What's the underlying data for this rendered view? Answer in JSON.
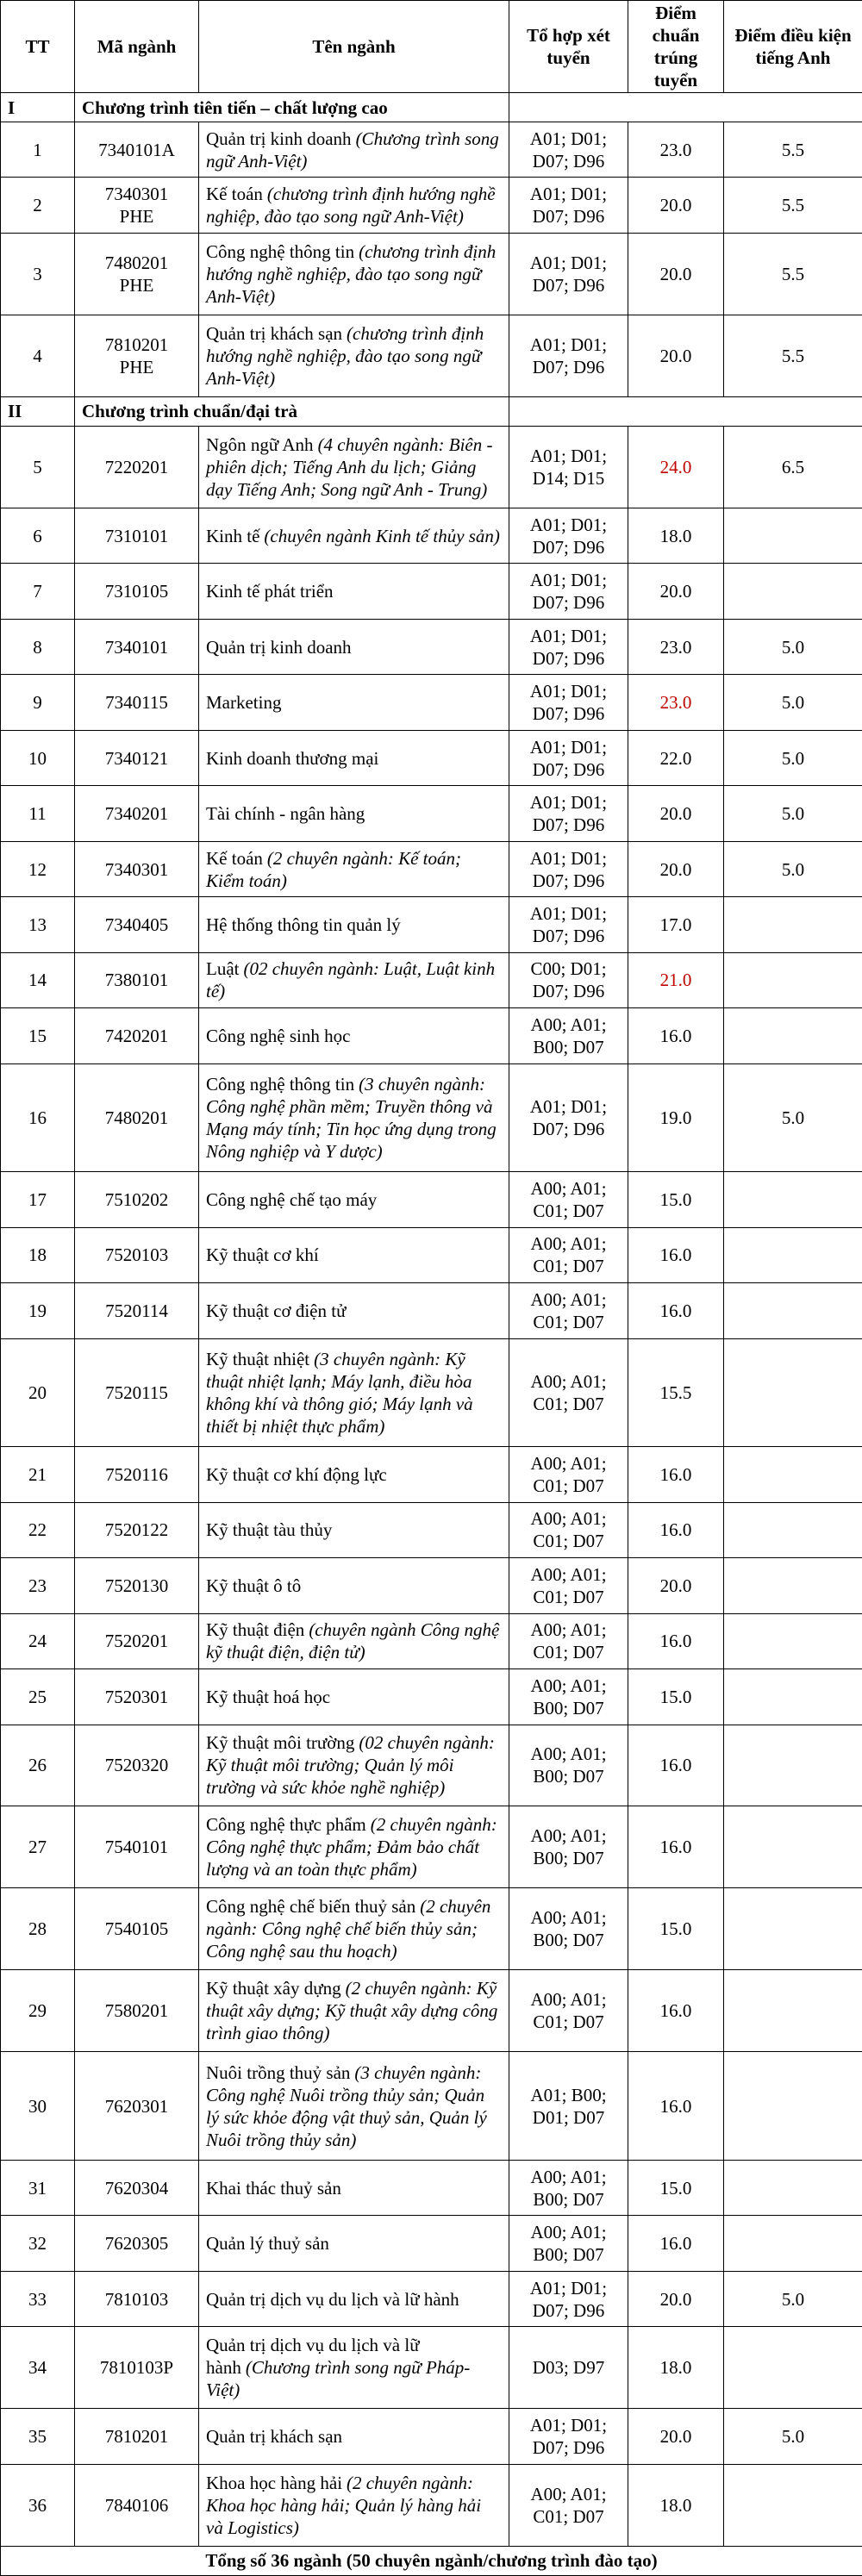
{
  "table": {
    "header": [
      "TT",
      "Mã ngành",
      "Tên ngành",
      "Tổ hợp xét tuyển",
      "Điểm chuẩn trúng tuyển",
      "Điểm điều kiện tiếng Anh"
    ],
    "sections": [
      {
        "numeral": "I",
        "title": "Chương trình tiên tiến – chất lượng cao",
        "rows": [
          {
            "tt": "1",
            "code": "7340101A",
            "name": "Quản trị kinh doanh",
            "detail": "(Chương trình song ngữ Anh-Việt)",
            "combo": "A01; D01; D07; D96",
            "score": "23.0",
            "english": "5.5"
          },
          {
            "tt": "2",
            "code": "7340301 PHE",
            "name": "Kế toán",
            "detail": "(chương trình định hướng nghề nghiệp, đào tạo song ngữ Anh-Việt)",
            "combo": "A01; D01; D07; D96",
            "score": "20.0",
            "english": "5.5"
          },
          {
            "tt": "3",
            "code": "7480201 PHE",
            "name": "Công nghệ thông tin",
            "detail": "(chương trình định hướng nghề nghiệp, đào tạo song ngữ Anh-Việt)",
            "combo": "A01; D01; D07; D96",
            "score": "20.0",
            "english": "5.5"
          },
          {
            "tt": "4",
            "code": "7810201 PHE",
            "name": "Quản trị khách sạn",
            "detail": "(chương trình định hướng nghề nghiệp, đào tạo song ngữ Anh-Việt)",
            "combo": "A01; D01; D07; D96",
            "score": "20.0",
            "english": "5.5"
          }
        ]
      },
      {
        "numeral": "II",
        "title": "Chương trình chuẩn/đại trà",
        "rows": [
          {
            "tt": "5",
            "code": "7220201",
            "name": "Ngôn ngữ Anh",
            "detail": "(4 chuyên ngành: Biên - phiên dịch; Tiếng Anh du lịch; Giảng dạy Tiếng Anh; Song ngữ Anh - Trung)",
            "combo": "A01; D01; D14; D15",
            "score": "24.0",
            "score_color": "#c00000",
            "english": "6.5"
          },
          {
            "tt": "6",
            "code": "7310101",
            "name": "Kinh tế",
            "detail": "(chuyên ngành Kinh tế thủy sản)",
            "combo": "A01; D01; D07; D96",
            "score": "18.0"
          },
          {
            "tt": "7",
            "code": "7310105",
            "name": "Kinh tế phát triển",
            "combo": "A01; D01; D07; D96",
            "score": "20.0"
          },
          {
            "tt": "8",
            "code": "7340101",
            "name": "Quản trị kinh doanh",
            "combo": "A01; D01; D07; D96",
            "score": "23.0",
            "english": "5.0"
          },
          {
            "tt": "9",
            "code": "7340115",
            "name": "Marketing",
            "combo": "A01; D01; D07; D96",
            "score": "23.0",
            "score_color": "#c00000",
            "english": "5.0"
          },
          {
            "tt": "10",
            "code": "7340121",
            "name": "Kinh doanh thương mại",
            "combo": "A01; D01; D07; D96",
            "score": "22.0",
            "english": "5.0"
          },
          {
            "tt": "11",
            "code": "7340201",
            "name": "Tài chính - ngân hàng",
            "combo": "A01; D01; D07; D96",
            "score": "20.0",
            "english": "5.0"
          },
          {
            "tt": "12",
            "code": "7340301",
            "name": "Kế toán",
            "detail": "(2 chuyên ngành: Kế toán; Kiểm toán)",
            "combo": "A01; D01; D07; D96",
            "score": "20.0",
            "english": "5.0"
          },
          {
            "tt": "13",
            "code": "7340405",
            "name": "Hệ thống thông tin quản lý",
            "combo": "A01; D01; D07; D96",
            "score": "17.0"
          },
          {
            "tt": "14",
            "code": "7380101",
            "name": "Luật",
            "detail": "(02 chuyên ngành: Luật, Luật kinh tế)",
            "combo": "C00; D01; D07; D96",
            "score": "21.0",
            "score_color": "#c00000"
          },
          {
            "tt": "15",
            "code": "7420201",
            "name": "Công nghệ sinh học",
            "combo": "A00; A01; B00; D07",
            "score": "16.0"
          },
          {
            "tt": "16",
            "code": "7480201",
            "name": "Công nghệ thông tin",
            "detail": "(3 chuyên ngành: Công nghệ phần mềm; Truyền thông và Mạng máy tính; Tin học ứng dụng trong Nông nghiệp và Y dược)",
            "combo": "A01; D01; D07; D96",
            "score": "19.0",
            "english": "5.0"
          },
          {
            "tt": "17",
            "code": "7510202",
            "name": "Công nghệ chế tạo máy",
            "combo": "A00; A01; C01; D07",
            "score": "15.0"
          },
          {
            "tt": "18",
            "code": "7520103",
            "name": "Kỹ thuật cơ khí",
            "combo": "A00; A01; C01; D07",
            "score": "16.0"
          },
          {
            "tt": "19",
            "code": "7520114",
            "name": "Kỹ thuật cơ điện tử",
            "combo": "A00; A01; C01; D07",
            "score": "16.0"
          },
          {
            "tt": "20",
            "code": "7520115",
            "name": "Kỹ thuật nhiệt",
            "detail": "(3 chuyên ngành: Kỹ thuật nhiệt lạnh; Máy lạnh, điều hòa không khí và thông gió; Máy lạnh và thiết bị nhiệt thực phẩm)",
            "combo": "A00; A01; C01; D07",
            "score": "15.5"
          },
          {
            "tt": "21",
            "code": "7520116",
            "name": "Kỹ thuật cơ khí động lực",
            "combo": "A00; A01; C01; D07",
            "score": "16.0"
          },
          {
            "tt": "22",
            "code": "7520122",
            "name": "Kỹ thuật tàu thủy",
            "combo": "A00; A01; C01; D07",
            "score": "16.0"
          },
          {
            "tt": "23",
            "code": "7520130",
            "name": "Kỹ thuật ô tô",
            "combo": "A00; A01; C01; D07",
            "score": "20.0"
          },
          {
            "tt": "24",
            "code": "7520201",
            "name": "Kỹ thuật điện",
            "detail": "(chuyên ngành Công nghệ kỹ thuật điện, điện tử)",
            "combo": "A00; A01; C01; D07",
            "score": "16.0"
          },
          {
            "tt": "25",
            "code": "7520301",
            "name": "Kỹ thuật hoá học",
            "combo": "A00; A01; B00; D07",
            "score": "15.0"
          },
          {
            "tt": "26",
            "code": "7520320",
            "name": "Kỹ thuật môi trường",
            "detail": "(02 chuyên ngành: Kỹ thuật môi trường; Quản lý môi trường và sức khỏe nghề nghiệp)",
            "combo": "A00; A01; B00; D07",
            "score": "16.0"
          },
          {
            "tt": "27",
            "code": "7540101",
            "name": "Công nghệ thực phẩm",
            "detail": "(2 chuyên ngành: Công nghệ thực phẩm; Đảm bảo chất lượng và an toàn thực phẩm)",
            "combo": "A00; A01; B00; D07",
            "score": "16.0"
          },
          {
            "tt": "28",
            "code": "7540105",
            "name": "Công nghệ chế biến thuỷ sản",
            "detail": "(2 chuyên ngành: Công nghệ chế biến thủy sản; Công nghệ sau thu hoạch)",
            "combo": "A00; A01; B00; D07",
            "score": "15.0"
          },
          {
            "tt": "29",
            "code": "7580201",
            "name": "Kỹ thuật xây dựng",
            "detail": "(2 chuyên ngành: Kỹ thuật xây dựng; Kỹ thuật xây dựng công trình giao thông)",
            "combo": "A00; A01; C01; D07",
            "score": "16.0"
          },
          {
            "tt": "30",
            "code": "7620301",
            "name": "Nuôi trồng thuỷ sản",
            "detail": "(3 chuyên ngành: Công nghệ Nuôi trồng thủy sản; Quản lý sức khỏe động vật thuỷ sản, Quản lý Nuôi trồng thủy sản)",
            "combo": "A01; B00; D01; D07",
            "score": "16.0"
          },
          {
            "tt": "31",
            "code": "7620304",
            "name": "Khai thác thuỷ sản",
            "combo": "A00; A01; B00; D07",
            "score": "15.0"
          },
          {
            "tt": "32",
            "code": "7620305",
            "name": "Quản lý thuỷ sản",
            "combo": "A00; A01; B00; D07",
            "score": "16.0"
          },
          {
            "tt": "33",
            "code": "7810103",
            "name": "Quản trị dịch vụ du lịch và lữ hành",
            "combo": "A01; D01; D07; D96",
            "score": "20.0",
            "english": "5.0"
          },
          {
            "tt": "34",
            "code": "7810103P",
            "name": "Quản trị dịch vụ du lịch và lữ hành",
            "detail": "(Chương trình song ngữ Pháp-Việt)",
            "combo": "D03; D97",
            "score": "18.0"
          },
          {
            "tt": "35",
            "code": "7810201",
            "name": "Quản trị khách sạn",
            "combo": "A01; D01; D07; D96",
            "score": "20.0",
            "english": "5.0"
          },
          {
            "tt": "36",
            "code": "7840106",
            "name": "Khoa học hàng hải",
            "detail": "(2 chuyên ngành: Khoa học hàng hải; Quản lý hàng hải và Logistics)",
            "combo": "A00; A01; C01; D07",
            "score": "18.0"
          }
        ]
      }
    ],
    "total": "Tổng số 36 ngành (50 chuyên ngành/chương trình đào tạo)"
  }
}
